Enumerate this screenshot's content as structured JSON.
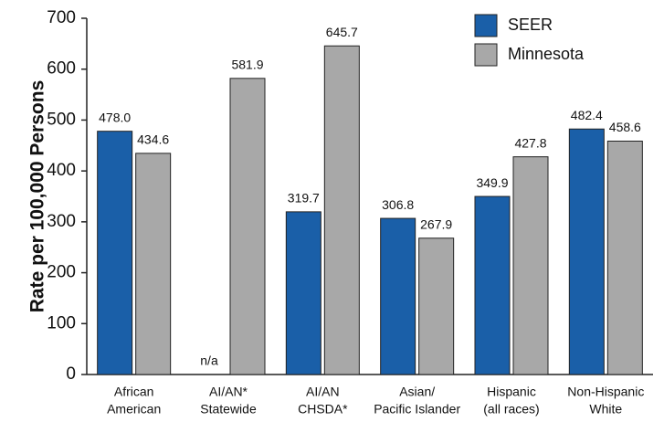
{
  "chart_data": {
    "type": "bar",
    "y_label": "Rate per 100,000 Persons",
    "categories": [
      [
        "African",
        "American"
      ],
      [
        "AI/AN*",
        "Statewide"
      ],
      [
        "AI/AN",
        "CHSDA*"
      ],
      [
        "Asian/",
        "Pacific Islander"
      ],
      [
        "Hispanic",
        "(all races)"
      ],
      [
        "Non-Hispanic",
        "White"
      ]
    ],
    "series": [
      {
        "name": "SEER",
        "color": "#1a5fa8",
        "values": [
          478.0,
          null,
          319.7,
          306.8,
          349.9,
          482.4
        ],
        "value_labels": [
          "478.0",
          "n/a",
          "319.7",
          "306.8",
          "349.9",
          "482.4"
        ]
      },
      {
        "name": "Minnesota",
        "color": "#a8a8a8",
        "values": [
          434.6,
          581.9,
          645.7,
          267.9,
          427.8,
          458.6
        ],
        "value_labels": [
          "434.6",
          "581.9",
          "645.7",
          "267.9",
          "427.8",
          "458.6"
        ]
      }
    ],
    "ylim": [
      0,
      700
    ],
    "yticks": [
      0,
      100,
      200,
      300,
      400,
      500,
      600,
      700
    ],
    "legend": "upper right",
    "grid": false
  }
}
